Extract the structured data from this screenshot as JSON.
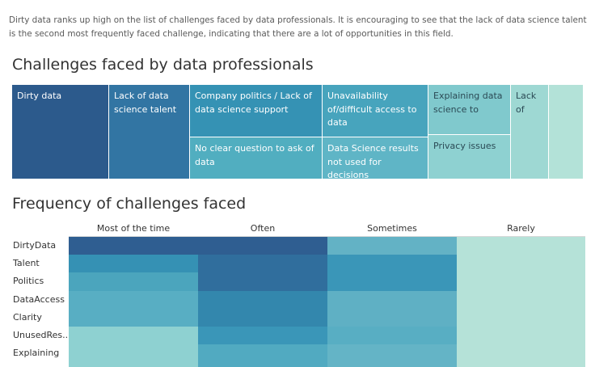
{
  "intro": "Dirty data ranks up high on the list of challenges faced by data professionals. It is encouraging to see that the lack of data science talent is the second most frequently faced challenge, indicating that there are a lot of opportunities in this field.",
  "chart_data": [
    {
      "type": "treemap",
      "title": "Challenges faced by data professionals",
      "items": [
        {
          "label": "Dirty data",
          "color": "#2c5a8c"
        },
        {
          "label": "Lack of data science talent",
          "color": "#3275a3"
        },
        {
          "label": "Company politics / Lack of data science support",
          "color": "#3592b4"
        },
        {
          "label": "No clear question to ask of data",
          "color": "#51aec0"
        },
        {
          "label": "Unavailability of/difficult access to data",
          "color": "#47a4bd"
        },
        {
          "label": "Data Science results not used for decisions",
          "color": "#5fb5c6"
        },
        {
          "label": "Explaining data science to",
          "color": "#80c9cd"
        },
        {
          "label": "Privacy issues",
          "color": "#8ed1d1"
        },
        {
          "label": "Lack of",
          "color": "#9ed8d3"
        },
        {
          "label": "",
          "color": "#b3e2d8"
        }
      ]
    },
    {
      "type": "heatmap",
      "title": "Frequency of challenges faced",
      "columns": [
        "Most of the time",
        "Often",
        "Sometimes",
        "Rarely"
      ],
      "rows": [
        "DirtyData",
        "Talent",
        "Politics",
        "DataAccess",
        "Clarity",
        "UnusedRes..",
        "Explaining"
      ],
      "cell_colors": [
        [
          "#2f5e91",
          "#2f5e91",
          "#63b2c5",
          "#b5e2d8"
        ],
        [
          "#3591b4",
          "#306e9d",
          "#3a96b8",
          "#b5e2d8"
        ],
        [
          "#4ba5bd",
          "#306e9d",
          "#3a96b8",
          "#b5e2d8"
        ],
        [
          "#58aec3",
          "#3387ad",
          "#5fb0c4",
          "#b5e2d8"
        ],
        [
          "#58aec3",
          "#3387ad",
          "#5fb0c4",
          "#b5e2d8"
        ],
        [
          "#8ed1d1",
          "#3a96b8",
          "#58aec3",
          "#b5e2d8"
        ],
        [
          "#8ed1d1",
          "#51aac1",
          "#64b4c6",
          "#b5e2d8"
        ]
      ]
    }
  ]
}
